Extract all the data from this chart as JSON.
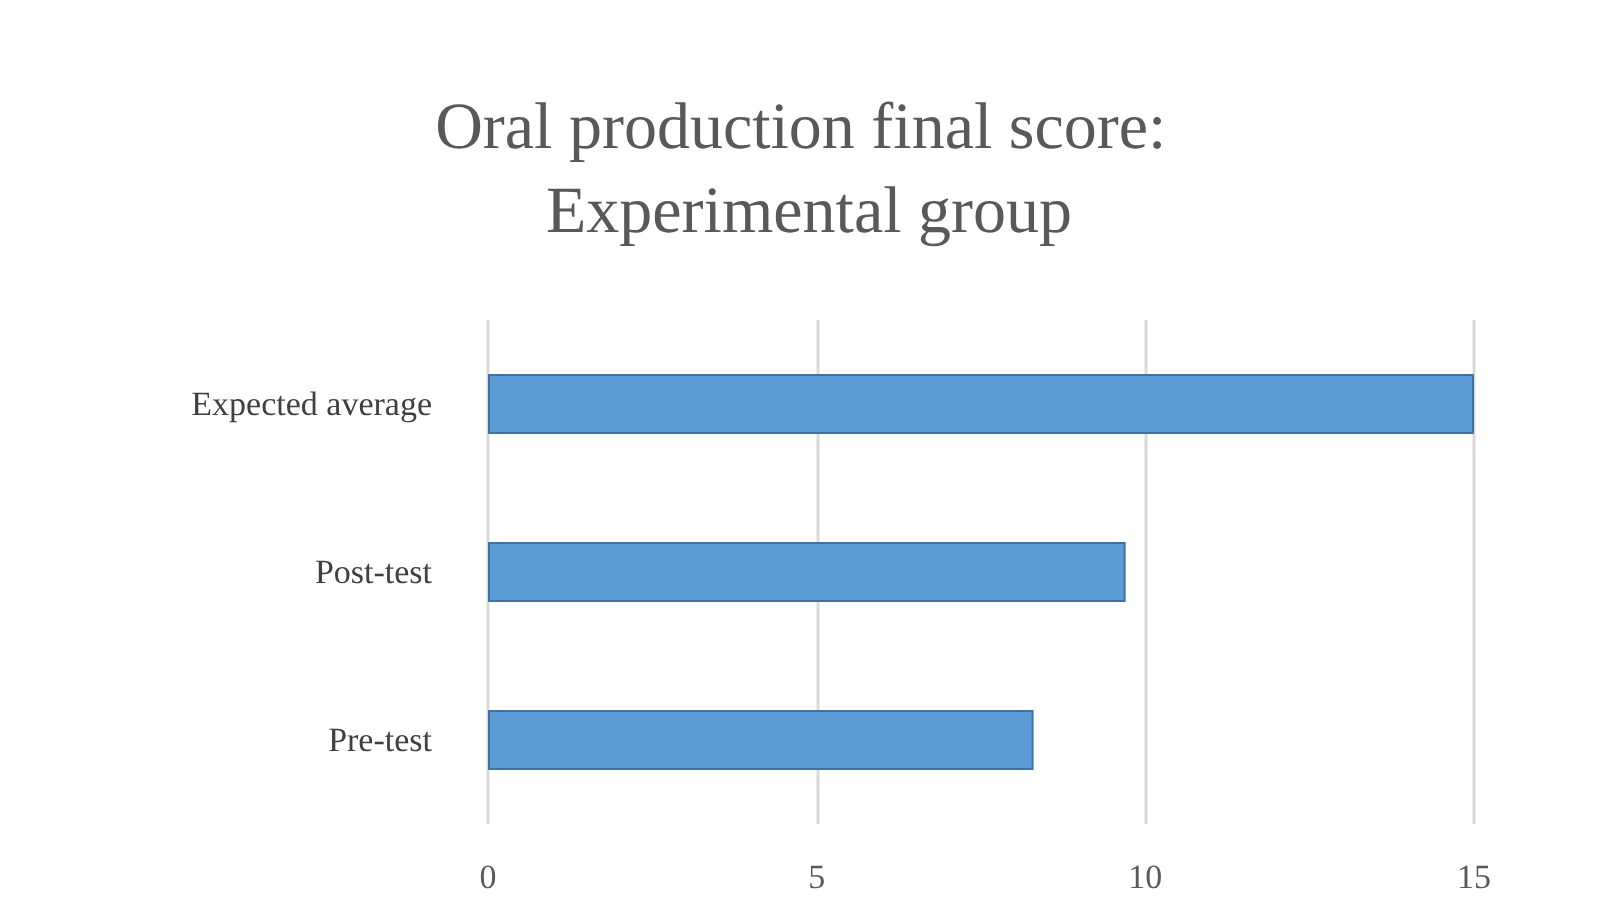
{
  "chart_data": {
    "type": "bar",
    "orientation": "horizontal",
    "title": "Oral production final score: Experimental group",
    "categories": [
      "Expected average",
      "Post-test",
      "Pre-test"
    ],
    "values": [
      15,
      9.7,
      8.3
    ],
    "color": "#5b9bd5",
    "xlim": [
      0,
      15
    ],
    "xticks": [
      0,
      5,
      10,
      15
    ],
    "grid": "x"
  }
}
